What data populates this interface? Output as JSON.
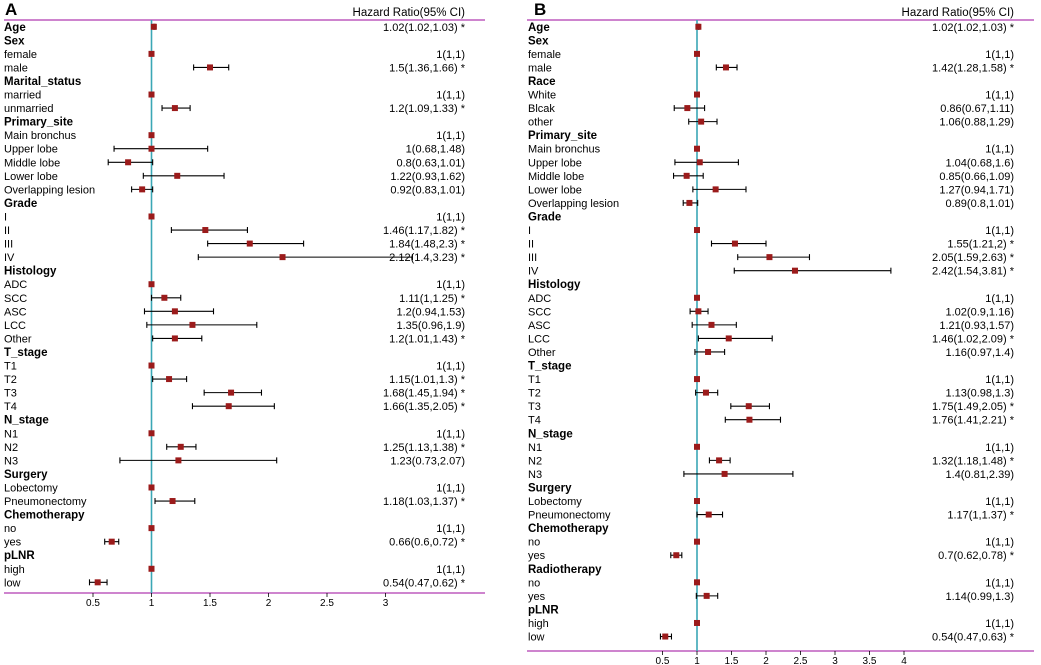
{
  "chart_data": [
    {
      "type": "forest",
      "panel": "A",
      "header": "Hazard Ratio(95% CI)",
      "axis_ticks": [
        "0.5",
        "1",
        "1.5",
        "2",
        "2.5",
        "3"
      ],
      "xlim": [
        0.3,
        3.0
      ],
      "ref_line": 1,
      "rows": [
        {
          "kind": "var",
          "label": "Age",
          "hr": 1.02,
          "lo": 1.02,
          "hi": 1.03,
          "text": "1.02(1.02,1.03) *"
        },
        {
          "kind": "head",
          "label": "Sex"
        },
        {
          "kind": "lvl",
          "label": "female",
          "hr": 1,
          "lo": 1,
          "hi": 1,
          "text": "1(1,1)"
        },
        {
          "kind": "lvl",
          "label": "male",
          "hr": 1.5,
          "lo": 1.36,
          "hi": 1.66,
          "text": "1.5(1.36,1.66) *"
        },
        {
          "kind": "head",
          "label": "Marital_status"
        },
        {
          "kind": "lvl",
          "label": "married",
          "hr": 1,
          "lo": 1,
          "hi": 1,
          "text": "1(1,1)"
        },
        {
          "kind": "lvl",
          "label": "unmarried",
          "hr": 1.2,
          "lo": 1.09,
          "hi": 1.33,
          "text": "1.2(1.09,1.33) *"
        },
        {
          "kind": "head",
          "label": "Primary_site"
        },
        {
          "kind": "lvl",
          "label": "Main bronchus",
          "hr": 1,
          "lo": 1,
          "hi": 1,
          "text": "1(1,1)"
        },
        {
          "kind": "lvl",
          "label": "Upper lobe",
          "hr": 1,
          "lo": 0.68,
          "hi": 1.48,
          "text": "1(0.68,1.48)"
        },
        {
          "kind": "lvl",
          "label": "Middle lobe",
          "hr": 0.8,
          "lo": 0.63,
          "hi": 1.01,
          "text": "0.8(0.63,1.01)"
        },
        {
          "kind": "lvl",
          "label": "Lower lobe",
          "hr": 1.22,
          "lo": 0.93,
          "hi": 1.62,
          "text": "1.22(0.93,1.62)"
        },
        {
          "kind": "lvl",
          "label": "Overlapping lesion",
          "hr": 0.92,
          "lo": 0.83,
          "hi": 1.01,
          "text": "0.92(0.83,1.01)"
        },
        {
          "kind": "head",
          "label": "Grade"
        },
        {
          "kind": "lvl",
          "label": "I",
          "hr": 1,
          "lo": 1,
          "hi": 1,
          "text": "1(1,1)"
        },
        {
          "kind": "lvl",
          "label": "II",
          "hr": 1.46,
          "lo": 1.17,
          "hi": 1.82,
          "text": "1.46(1.17,1.82) *"
        },
        {
          "kind": "lvl",
          "label": "III",
          "hr": 1.84,
          "lo": 1.48,
          "hi": 2.3,
          "text": "1.84(1.48,2.3) *"
        },
        {
          "kind": "lvl",
          "label": "IV",
          "hr": 2.12,
          "lo": 1.4,
          "hi": 3.23,
          "text": "2.12(1.4,3.23) *"
        },
        {
          "kind": "head",
          "label": "Histology"
        },
        {
          "kind": "lvl",
          "label": "ADC",
          "hr": 1,
          "lo": 1,
          "hi": 1,
          "text": "1(1,1)"
        },
        {
          "kind": "lvl",
          "label": "SCC",
          "hr": 1.11,
          "lo": 1,
          "hi": 1.25,
          "text": "1.11(1,1.25) *"
        },
        {
          "kind": "lvl",
          "label": "ASC",
          "hr": 1.2,
          "lo": 0.94,
          "hi": 1.53,
          "text": "1.2(0.94,1.53)"
        },
        {
          "kind": "lvl",
          "label": "LCC",
          "hr": 1.35,
          "lo": 0.96,
          "hi": 1.9,
          "text": "1.35(0.96,1.9)"
        },
        {
          "kind": "lvl",
          "label": "Other",
          "hr": 1.2,
          "lo": 1.01,
          "hi": 1.43,
          "text": "1.2(1.01,1.43) *"
        },
        {
          "kind": "head",
          "label": "T_stage"
        },
        {
          "kind": "lvl",
          "label": "T1",
          "hr": 1,
          "lo": 1,
          "hi": 1,
          "text": "1(1,1)"
        },
        {
          "kind": "lvl",
          "label": "T2",
          "hr": 1.15,
          "lo": 1.01,
          "hi": 1.3,
          "text": "1.15(1.01,1.3) *"
        },
        {
          "kind": "lvl",
          "label": "T3",
          "hr": 1.68,
          "lo": 1.45,
          "hi": 1.94,
          "text": "1.68(1.45,1.94) *"
        },
        {
          "kind": "lvl",
          "label": "T4",
          "hr": 1.66,
          "lo": 1.35,
          "hi": 2.05,
          "text": "1.66(1.35,2.05) *"
        },
        {
          "kind": "head",
          "label": "N_stage"
        },
        {
          "kind": "lvl",
          "label": "N1",
          "hr": 1,
          "lo": 1,
          "hi": 1,
          "text": "1(1,1)"
        },
        {
          "kind": "lvl",
          "label": "N2",
          "hr": 1.25,
          "lo": 1.13,
          "hi": 1.38,
          "text": "1.25(1.13,1.38) *"
        },
        {
          "kind": "lvl",
          "label": "N3",
          "hr": 1.23,
          "lo": 0.73,
          "hi": 2.07,
          "text": "1.23(0.73,2.07)"
        },
        {
          "kind": "head",
          "label": "Surgery"
        },
        {
          "kind": "lvl",
          "label": "Lobectomy",
          "hr": 1,
          "lo": 1,
          "hi": 1,
          "text": "1(1,1)"
        },
        {
          "kind": "lvl",
          "label": "Pneumonectomy",
          "hr": 1.18,
          "lo": 1.03,
          "hi": 1.37,
          "text": "1.18(1.03,1.37) *"
        },
        {
          "kind": "head",
          "label": "Chemotherapy"
        },
        {
          "kind": "lvl",
          "label": "no",
          "hr": 1,
          "lo": 1,
          "hi": 1,
          "text": "1(1,1)"
        },
        {
          "kind": "lvl",
          "label": "yes",
          "hr": 0.66,
          "lo": 0.6,
          "hi": 0.72,
          "text": "0.66(0.6,0.72) *"
        },
        {
          "kind": "head",
          "label": "pLNR"
        },
        {
          "kind": "lvl",
          "label": "high",
          "hr": 1,
          "lo": 1,
          "hi": 1,
          "text": "1(1,1)"
        },
        {
          "kind": "lvl",
          "label": "low",
          "hr": 0.54,
          "lo": 0.47,
          "hi": 0.62,
          "text": "0.54(0.47,0.62) *"
        }
      ]
    },
    {
      "type": "forest",
      "panel": "B",
      "header": "Hazard Ratio(95% CI)",
      "axis_ticks": [
        "0.5",
        "1",
        "1.5",
        "2",
        "2.5",
        "3",
        "3.5",
        "4"
      ],
      "xlim": [
        0.3,
        4.0
      ],
      "ref_line": 1,
      "rows": [
        {
          "kind": "var",
          "label": "Age",
          "hr": 1.02,
          "lo": 1.02,
          "hi": 1.03,
          "text": "1.02(1.02,1.03) *"
        },
        {
          "kind": "head",
          "label": "Sex"
        },
        {
          "kind": "lvl",
          "label": "female",
          "hr": 1,
          "lo": 1,
          "hi": 1,
          "text": "1(1,1)"
        },
        {
          "kind": "lvl",
          "label": "male",
          "hr": 1.42,
          "lo": 1.28,
          "hi": 1.58,
          "text": "1.42(1.28,1.58) *"
        },
        {
          "kind": "head",
          "label": "Race"
        },
        {
          "kind": "lvl",
          "label": "White",
          "hr": 1,
          "lo": 1,
          "hi": 1,
          "text": "1(1,1)"
        },
        {
          "kind": "lvl",
          "label": "Blcak",
          "hr": 0.86,
          "lo": 0.67,
          "hi": 1.11,
          "text": "0.86(0.67,1.11)"
        },
        {
          "kind": "lvl",
          "label": "other",
          "hr": 1.06,
          "lo": 0.88,
          "hi": 1.29,
          "text": "1.06(0.88,1.29)"
        },
        {
          "kind": "head",
          "label": "Primary_site"
        },
        {
          "kind": "lvl",
          "label": "Main bronchus",
          "hr": 1,
          "lo": 1,
          "hi": 1,
          "text": "1(1,1)"
        },
        {
          "kind": "lvl",
          "label": "Upper lobe",
          "hr": 1.04,
          "lo": 0.68,
          "hi": 1.6,
          "text": "1.04(0.68,1.6)"
        },
        {
          "kind": "lvl",
          "label": "Middle lobe",
          "hr": 0.85,
          "lo": 0.66,
          "hi": 1.09,
          "text": "0.85(0.66,1.09)"
        },
        {
          "kind": "lvl",
          "label": "Lower lobe",
          "hr": 1.27,
          "lo": 0.94,
          "hi": 1.71,
          "text": "1.27(0.94,1.71)"
        },
        {
          "kind": "lvl",
          "label": "Overlapping lesion",
          "hr": 0.89,
          "lo": 0.8,
          "hi": 1.01,
          "text": "0.89(0.8,1.01)"
        },
        {
          "kind": "head",
          "label": "Grade"
        },
        {
          "kind": "lvl",
          "label": "I",
          "hr": 1,
          "lo": 1,
          "hi": 1,
          "text": "1(1,1)"
        },
        {
          "kind": "lvl",
          "label": "II",
          "hr": 1.55,
          "lo": 1.21,
          "hi": 2,
          "text": "1.55(1.21,2) *"
        },
        {
          "kind": "lvl",
          "label": "III",
          "hr": 2.05,
          "lo": 1.59,
          "hi": 2.63,
          "text": "2.05(1.59,2.63) *"
        },
        {
          "kind": "lvl",
          "label": "IV",
          "hr": 2.42,
          "lo": 1.54,
          "hi": 3.81,
          "text": "2.42(1.54,3.81) *"
        },
        {
          "kind": "head",
          "label": "Histology"
        },
        {
          "kind": "lvl",
          "label": "ADC",
          "hr": 1,
          "lo": 1,
          "hi": 1,
          "text": "1(1,1)"
        },
        {
          "kind": "lvl",
          "label": "SCC",
          "hr": 1.02,
          "lo": 0.9,
          "hi": 1.16,
          "text": "1.02(0.9,1.16)"
        },
        {
          "kind": "lvl",
          "label": "ASC",
          "hr": 1.21,
          "lo": 0.93,
          "hi": 1.57,
          "text": "1.21(0.93,1.57)"
        },
        {
          "kind": "lvl",
          "label": "LCC",
          "hr": 1.46,
          "lo": 1.02,
          "hi": 2.09,
          "text": "1.46(1.02,2.09) *"
        },
        {
          "kind": "lvl",
          "label": "Other",
          "hr": 1.16,
          "lo": 0.97,
          "hi": 1.4,
          "text": "1.16(0.97,1.4)"
        },
        {
          "kind": "head",
          "label": "T_stage"
        },
        {
          "kind": "lvl",
          "label": "T1",
          "hr": 1,
          "lo": 1,
          "hi": 1,
          "text": "1(1,1)"
        },
        {
          "kind": "lvl",
          "label": "T2",
          "hr": 1.13,
          "lo": 0.98,
          "hi": 1.3,
          "text": "1.13(0.98,1.3)"
        },
        {
          "kind": "lvl",
          "label": "T3",
          "hr": 1.75,
          "lo": 1.49,
          "hi": 2.05,
          "text": "1.75(1.49,2.05) *"
        },
        {
          "kind": "lvl",
          "label": "T4",
          "hr": 1.76,
          "lo": 1.41,
          "hi": 2.21,
          "text": "1.76(1.41,2.21) *"
        },
        {
          "kind": "head",
          "label": "N_stage"
        },
        {
          "kind": "lvl",
          "label": "N1",
          "hr": 1,
          "lo": 1,
          "hi": 1,
          "text": "1(1,1)"
        },
        {
          "kind": "lvl",
          "label": "N2",
          "hr": 1.32,
          "lo": 1.18,
          "hi": 1.48,
          "text": "1.32(1.18,1.48) *"
        },
        {
          "kind": "lvl",
          "label": "N3",
          "hr": 1.4,
          "lo": 0.81,
          "hi": 2.39,
          "text": "1.4(0.81,2.39)"
        },
        {
          "kind": "head",
          "label": "Surgery"
        },
        {
          "kind": "lvl",
          "label": "Lobectomy",
          "hr": 1,
          "lo": 1,
          "hi": 1,
          "text": "1(1,1)"
        },
        {
          "kind": "lvl",
          "label": "Pneumonectomy",
          "hr": 1.17,
          "lo": 1,
          "hi": 1.37,
          "text": "1.17(1,1.37) *"
        },
        {
          "kind": "head",
          "label": "Chemotherapy"
        },
        {
          "kind": "lvl",
          "label": "no",
          "hr": 1,
          "lo": 1,
          "hi": 1,
          "text": "1(1,1)"
        },
        {
          "kind": "lvl",
          "label": "yes",
          "hr": 0.7,
          "lo": 0.62,
          "hi": 0.78,
          "text": "0.7(0.62,0.78) *"
        },
        {
          "kind": "head",
          "label": "Radiotherapy"
        },
        {
          "kind": "lvl",
          "label": "no",
          "hr": 1,
          "lo": 1,
          "hi": 1,
          "text": "1(1,1)"
        },
        {
          "kind": "lvl",
          "label": "yes",
          "hr": 1.14,
          "lo": 0.99,
          "hi": 1.3,
          "text": "1.14(0.99,1.3)"
        },
        {
          "kind": "head",
          "label": "pLNR"
        },
        {
          "kind": "lvl",
          "label": "high",
          "hr": 1,
          "lo": 1,
          "hi": 1,
          "text": "1(1,1)"
        },
        {
          "kind": "lvl",
          "label": "low",
          "hr": 0.54,
          "lo": 0.47,
          "hi": 0.63,
          "text": "0.54(0.47,0.63) *"
        }
      ]
    }
  ],
  "colors": {
    "frame": "#b03ab0",
    "ref_line": "#3aa7b5",
    "marker": "#9b1b1b",
    "whisker": "#000000"
  }
}
